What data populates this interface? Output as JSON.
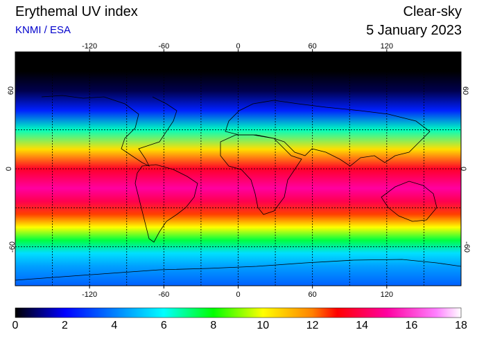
{
  "header": {
    "title": "Erythemal UV index",
    "source": "KNMI / ESA",
    "mode": "Clear-sky",
    "date": "5 January 2023"
  },
  "map": {
    "lon_range": [
      -180,
      180
    ],
    "lat_range": [
      -90,
      90
    ],
    "lon_ticks": [
      -120,
      -60,
      0,
      60,
      120
    ],
    "lon_tick_labels": [
      "-120",
      "-60",
      "0",
      "60",
      "120"
    ],
    "lat_ticks": [
      60,
      0,
      -60
    ],
    "lat_tick_labels": [
      "60",
      "0",
      "-60"
    ],
    "grid_lines_lat": [
      30,
      0,
      -30,
      -60
    ],
    "grid_lines_lon": [
      -150,
      -120,
      -90,
      -60,
      -30,
      0,
      30,
      60,
      90,
      120,
      150
    ],
    "uv_profile": [
      {
        "lat": 90,
        "uv": 0
      },
      {
        "lat": 75,
        "uv": 0
      },
      {
        "lat": 60,
        "uv": 0.6
      },
      {
        "lat": 45,
        "uv": 2.5
      },
      {
        "lat": 30,
        "uv": 6.5
      },
      {
        "lat": 15,
        "uv": 10.5
      },
      {
        "lat": 0,
        "uv": 13.5
      },
      {
        "lat": -15,
        "uv": 15
      },
      {
        "lat": -25,
        "uv": 14
      },
      {
        "lat": -35,
        "uv": 12.5
      },
      {
        "lat": -45,
        "uv": 10
      },
      {
        "lat": -55,
        "uv": 7.5
      },
      {
        "lat": -65,
        "uv": 5.5
      },
      {
        "lat": -75,
        "uv": 4.5
      },
      {
        "lat": -90,
        "uv": 3.5
      }
    ]
  },
  "colorbar": {
    "min": 0,
    "max": 18,
    "ticks": [
      "0",
      "2",
      "4",
      "6",
      "8",
      "10",
      "12",
      "14",
      "16",
      "18"
    ],
    "stops": [
      {
        "value": 0,
        "color": "#000000"
      },
      {
        "value": 2,
        "color": "#0000ff"
      },
      {
        "value": 4,
        "color": "#0080ff"
      },
      {
        "value": 6,
        "color": "#00ffff"
      },
      {
        "value": 8,
        "color": "#00ff00"
      },
      {
        "value": 10,
        "color": "#ffff00"
      },
      {
        "value": 12,
        "color": "#ff8000"
      },
      {
        "value": 13,
        "color": "#ff0000"
      },
      {
        "value": 15,
        "color": "#ff00a0"
      },
      {
        "value": 17,
        "color": "#ff80ff"
      },
      {
        "value": 18,
        "color": "#ffffff"
      }
    ]
  }
}
